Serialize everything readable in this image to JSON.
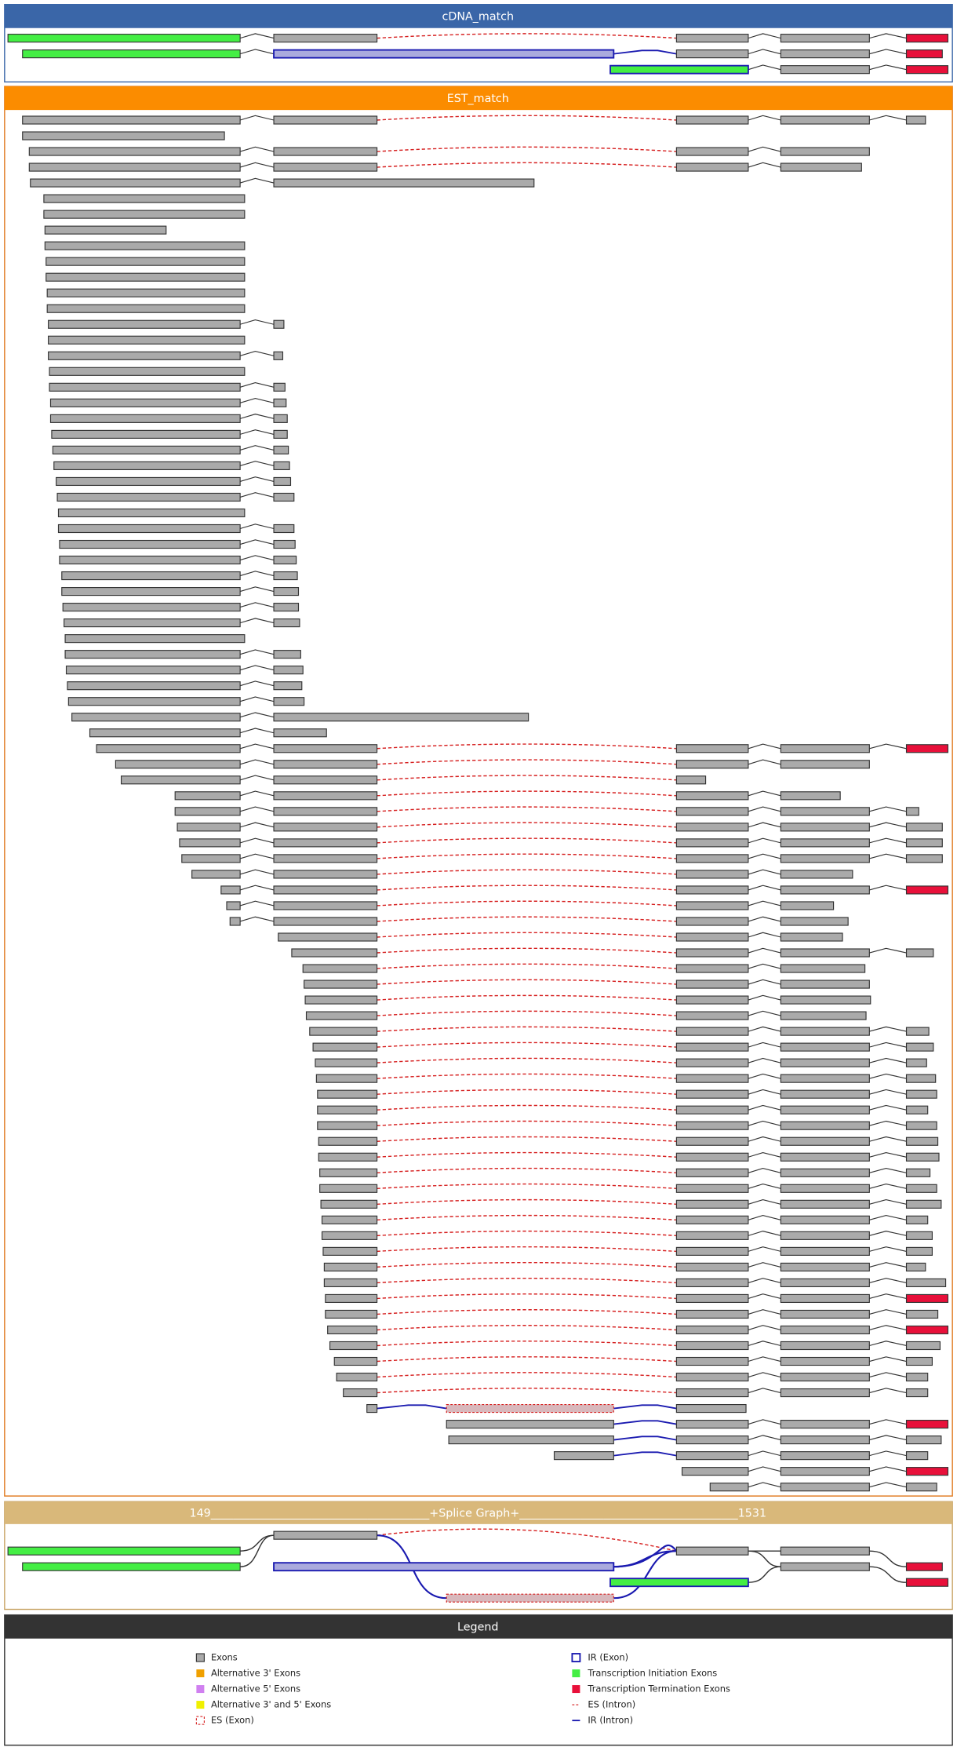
{
  "panels": [
    {
      "title": "cDNA_match"
    },
    {
      "title": "EST_match"
    },
    {
      "title": "149_______________________________________+Splice Graph+_______________________________________1531"
    }
  ],
  "legend": {
    "title": "Legend",
    "items": [
      "Exons",
      "Alternative 3' Exons",
      "Alternative 5' Exons",
      "Alternative 3' and 5' Exons",
      "ES (Exon)",
      "IR (Exon)",
      "Transcription Initiation Exons",
      "Transcription Termination Exons",
      "ES (Intron)",
      "IR (Intron)"
    ]
  }
}
